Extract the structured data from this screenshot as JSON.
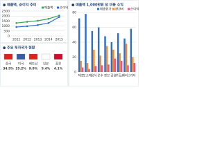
{
  "chart_data": [
    {
      "type": "line",
      "title": "● 매출액, 순이익 추이",
      "x": [
        "2011",
        "2012",
        "2013",
        "2014",
        "2015"
      ],
      "series": [
        {
          "name": "매출액",
          "color": "#3aa55a",
          "values": [
            1300,
            1420,
            1530,
            1720,
            2050
          ]
        },
        {
          "name": "순이익",
          "color": "#2f6fc4",
          "values": [
            900,
            980,
            1100,
            1300,
            1900
          ]
        }
      ],
      "ylim": [
        0,
        2500
      ],
      "yticks": [
        0,
        500,
        1000,
        1500,
        2000,
        2500
      ],
      "grid": true
    },
    {
      "type": "bar",
      "title": "● 매출액 1,000만원 당 비용 수익",
      "categories": [
        "제조",
        "도소매",
        "음식",
        "운수",
        "정보",
        "금융",
        "부동산",
        "서비스",
        "기타"
      ],
      "series": [
        {
          "name": "매출원가",
          "color": "#2f6fc4",
          "values": [
            72,
            78,
            55,
            60,
            48,
            40,
            52,
            45,
            58
          ]
        },
        {
          "name": "판관비",
          "color": "#f08c2e",
          "values": [
            15,
            12,
            30,
            22,
            35,
            30,
            25,
            38,
            20
          ]
        },
        {
          "name": "순이익",
          "color": "#e2559a",
          "values": [
            6,
            4,
            8,
            9,
            10,
            18,
            15,
            9,
            12
          ]
        }
      ],
      "ylim": [
        0,
        80
      ],
      "yticks": [
        0,
        20,
        40,
        60,
        80
      ],
      "grid": true
    }
  ],
  "investment": {
    "title": "● 주요 투자국가 현황",
    "items": [
      {
        "country": "중국",
        "share": "34.5%"
      },
      {
        "country": "미국",
        "share": "15.2%"
      },
      {
        "country": "베트남",
        "share": "9.8%"
      },
      {
        "country": "일본",
        "share": "5.4%"
      },
      {
        "country": "홍콩",
        "share": "4.1%"
      }
    ]
  }
}
